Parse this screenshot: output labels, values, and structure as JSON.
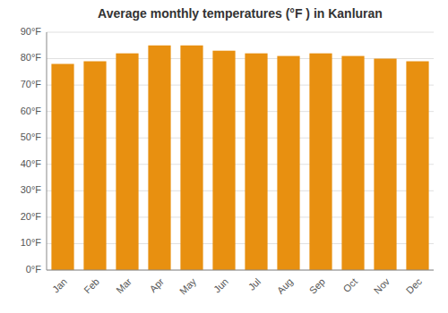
{
  "chart_data": {
    "type": "bar",
    "title": "Average monthly temperatures (°F ) in Kanluran",
    "categories": [
      "Jan",
      "Feb",
      "Mar",
      "Apr",
      "May",
      "Jun",
      "Jul",
      "Aug",
      "Sep",
      "Oct",
      "Nov",
      "Dec"
    ],
    "values": [
      78,
      79,
      82,
      85,
      85,
      83,
      82,
      81,
      82,
      81,
      80,
      79
    ],
    "color": "#E89010",
    "ylim": [
      0,
      90
    ],
    "yticks": [
      {
        "value": 0,
        "label": "0°F"
      },
      {
        "value": 10,
        "label": "10°F"
      },
      {
        "value": 20,
        "label": "20°F"
      },
      {
        "value": 30,
        "label": "30°F"
      },
      {
        "value": 40,
        "label": "40°F"
      },
      {
        "value": 50,
        "label": "50°F"
      },
      {
        "value": 60,
        "label": "60°F"
      },
      {
        "value": 70,
        "label": "70°F"
      },
      {
        "value": 80,
        "label": "80°F"
      },
      {
        "value": 90,
        "label": "90°F"
      }
    ],
    "grid": true
  }
}
